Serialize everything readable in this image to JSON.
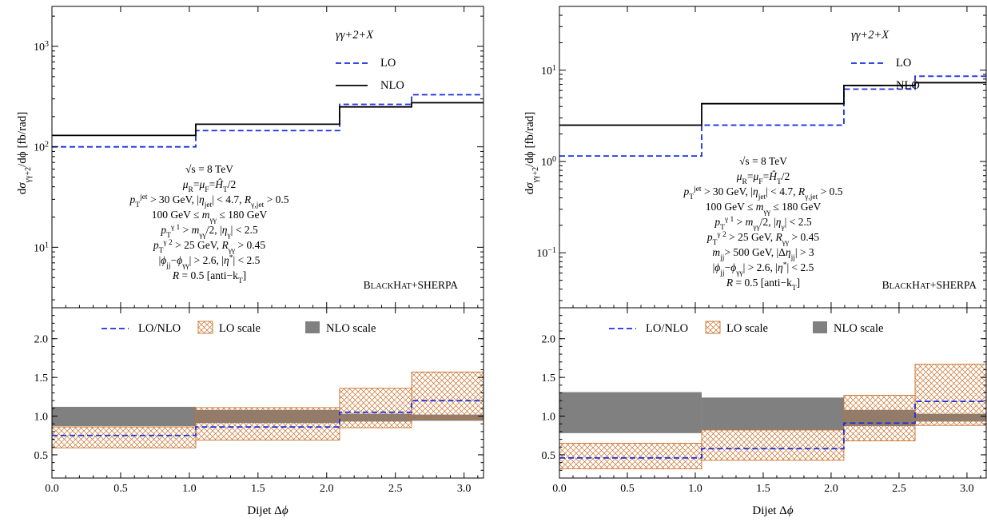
{
  "chart_data": [
    {
      "type": "step",
      "panel": "left",
      "x_edges": [
        0.0,
        1.047,
        2.094,
        2.618,
        3.1416
      ],
      "xlim": [
        0.0,
        3.1416
      ],
      "xlabel": "Dijet Δϕ",
      "x_ticks": [
        {
          "v": 0.0,
          "label": "0.0"
        },
        {
          "v": 0.5,
          "label": "0.5"
        },
        {
          "v": 1.0,
          "label": "1.0"
        },
        {
          "v": 1.5,
          "label": "1.5"
        },
        {
          "v": 2.0,
          "label": "2.0"
        },
        {
          "v": 2.5,
          "label": "2.5"
        },
        {
          "v": 3.0,
          "label": "3.0"
        }
      ],
      "top": {
        "scale": "log",
        "ylim": [
          2.5,
          2500
        ],
        "ylabel": "dσγγ+2/dϕ [fb/rad]",
        "ylabel_parts": {
          "d": "d",
          "sigma": "σ",
          "sub": "γγ+2",
          "rest": "/dϕ [fb/rad]"
        },
        "y_ticks": [
          {
            "v": 10,
            "base": "10",
            "exp": "1"
          },
          {
            "v": 100,
            "base": "10",
            "exp": "2"
          },
          {
            "v": 1000,
            "base": "10",
            "exp": "3"
          }
        ],
        "series": [
          {
            "name": "LO",
            "style": "dashed",
            "color": "#1a2fe0",
            "values": [
              100,
              145,
              265,
              330
            ]
          },
          {
            "name": "NLO",
            "style": "solid",
            "color": "#000000",
            "values": [
              130,
              168,
              250,
              275
            ]
          }
        ],
        "process_label": "γγ+2+X",
        "annotations": [
          "√s = 8 TeV",
          "μR=μF=ĤT/2",
          "pTjet > 30 GeV, |ηjet| < 4.7, Rγ,jet > 0.5",
          "100 GeV ≤ mγγ ≤ 180 GeV",
          "pTγ1 > mγγ/2, |ηγ| < 2.5",
          "pTγ2 > 25 GeV, Rγγ > 0.45",
          "|ϕjj−ϕγγ| > 2.6, |η*| < 2.5",
          "R = 0.5 [anti−kT]"
        ],
        "generator_label": "BLACKHAT+SHERPA"
      },
      "bottom": {
        "scale": "linear",
        "ylim": [
          0.2,
          2.4
        ],
        "y_ticks": [
          {
            "v": 0.5,
            "label": "0.5"
          },
          {
            "v": 1.0,
            "label": "1.0"
          },
          {
            "v": 1.5,
            "label": "1.5"
          },
          {
            "v": 2.0,
            "label": "2.0"
          }
        ],
        "ratio": {
          "name": "LO/NLO",
          "color": "#1a2fe0",
          "values": [
            0.75,
            0.86,
            1.05,
            1.2
          ]
        },
        "lo_band": {
          "name": "LO scale",
          "color": "#c8702a",
          "low": [
            0.59,
            0.69,
            0.85,
            0.97
          ],
          "high": [
            0.86,
            1.11,
            1.36,
            1.57
          ]
        },
        "nlo_band": {
          "name": "NLO scale",
          "color": "#808080",
          "low": [
            0.87,
            0.91,
            0.93,
            0.94
          ],
          "high": [
            1.12,
            1.08,
            1.03,
            1.02
          ]
        }
      }
    },
    {
      "type": "step",
      "panel": "right",
      "x_edges": [
        0.0,
        1.047,
        2.094,
        2.618,
        3.1416
      ],
      "xlim": [
        0.0,
        3.1416
      ],
      "xlabel": "Dijet Δϕ",
      "x_ticks": [
        {
          "v": 0.0,
          "label": "0.0"
        },
        {
          "v": 0.5,
          "label": "0.5"
        },
        {
          "v": 1.0,
          "label": "1.0"
        },
        {
          "v": 1.5,
          "label": "1.5"
        },
        {
          "v": 2.0,
          "label": "2.0"
        },
        {
          "v": 2.5,
          "label": "2.5"
        },
        {
          "v": 3.0,
          "label": "3.0"
        }
      ],
      "top": {
        "scale": "log",
        "ylim": [
          0.025,
          50
        ],
        "ylabel": "dσγγ+2/dϕ [fb/rad]",
        "ylabel_parts": {
          "d": "d",
          "sigma": "σ",
          "sub": "γγ+2",
          "rest": "/dϕ [fb/rad]"
        },
        "y_ticks": [
          {
            "v": 0.1,
            "base": "10",
            "exp": "−1"
          },
          {
            "v": 1,
            "base": "10",
            "exp": "0"
          },
          {
            "v": 10,
            "base": "10",
            "exp": "1"
          }
        ],
        "series": [
          {
            "name": "LO",
            "style": "dashed",
            "color": "#1a2fe0",
            "values": [
              1.15,
              2.5,
              6.2,
              8.6
            ]
          },
          {
            "name": "NLO",
            "style": "solid",
            "color": "#000000",
            "values": [
              2.5,
              4.3,
              6.8,
              7.3
            ]
          }
        ],
        "process_label": "γγ+2+X",
        "annotations": [
          "√s = 8 TeV",
          "μR=μF=ĤT/2",
          "pTjet > 30 GeV, |ηjet| < 4.7, Rγ,jet > 0.5",
          "100 GeV ≤ mγγ ≤ 180 GeV",
          "pTγ1 > mγγ/2, |ηγ| < 2.5",
          "pTγ2 > 25 GeV, Rγγ > 0.45",
          "mjj> 500 GeV, |Δηjj| > 3",
          "|ϕjj−ϕγγ| > 2.6, |η*| < 2.5",
          "R = 0.5 [anti−kT]"
        ],
        "generator_label": "BLACKHAT+SHERPA"
      },
      "bottom": {
        "scale": "linear",
        "ylim": [
          0.2,
          2.4
        ],
        "y_ticks": [
          {
            "v": 0.5,
            "label": "0.5"
          },
          {
            "v": 1.0,
            "label": "1.0"
          },
          {
            "v": 1.5,
            "label": "1.5"
          },
          {
            "v": 2.0,
            "label": "2.0"
          }
        ],
        "ratio": {
          "name": "LO/NLO",
          "color": "#1a2fe0",
          "values": [
            0.46,
            0.58,
            0.91,
            1.19
          ]
        },
        "lo_band": {
          "name": "LO scale",
          "color": "#c8702a",
          "low": [
            0.32,
            0.43,
            0.68,
            0.88
          ],
          "high": [
            0.65,
            0.82,
            1.27,
            1.67
          ]
        },
        "nlo_band": {
          "name": "NLO scale",
          "color": "#808080",
          "low": [
            0.78,
            0.82,
            0.87,
            0.93
          ],
          "high": [
            1.31,
            1.24,
            1.08,
            1.03
          ]
        }
      }
    }
  ]
}
